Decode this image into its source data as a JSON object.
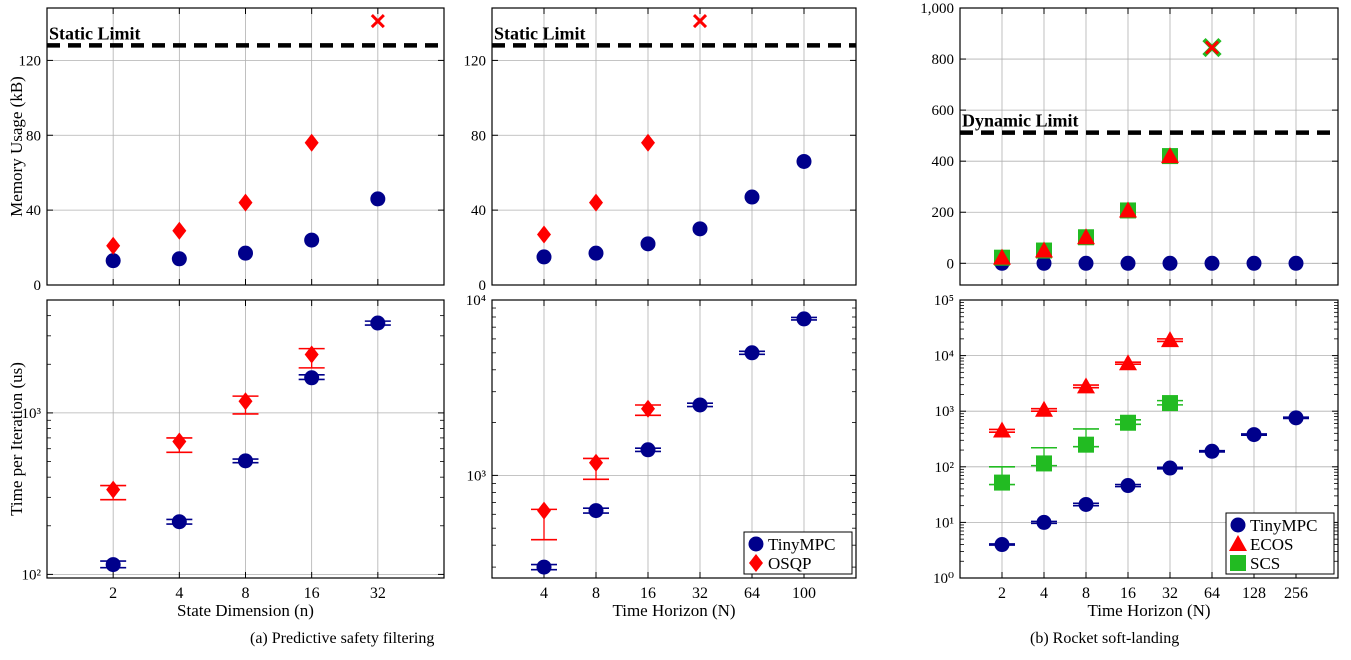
{
  "colors": {
    "tinympc": "#00008b",
    "osqp": "#ff0000",
    "ecos": "#ff0000",
    "scs": "#22bb22",
    "limit": "#000000",
    "grid": "#b0b0b0"
  },
  "captions": {
    "a": "(a) Predictive safety filtering",
    "b": "(b) Rocket soft-landing"
  },
  "chart_data": [
    {
      "id": "a-mem-n",
      "type": "scatter",
      "xlabel": "",
      "ylabel": "Memory Usage (kB)",
      "ylim": [
        0,
        148
      ],
      "yticks": [
        0,
        40,
        80,
        120
      ],
      "ytick_labels": [
        "0",
        "40",
        "80",
        "120"
      ],
      "categories": [
        "2",
        "4",
        "8",
        "16",
        "32"
      ],
      "show_x_ticklabels": false,
      "hline": {
        "value": 128,
        "label": "Static Limit"
      },
      "grid": true,
      "series": [
        {
          "name": "TinyMPC",
          "marker": "circle",
          "color": "#00008b",
          "values": [
            13,
            14,
            17,
            24,
            46
          ]
        },
        {
          "name": "OSQP",
          "marker": "diamond",
          "color": "#ff0000",
          "values": [
            21,
            29,
            44,
            76,
            null
          ]
        }
      ],
      "failures": [
        {
          "x": "32",
          "y": 141,
          "color": "#ff0000"
        }
      ]
    },
    {
      "id": "a-mem-N",
      "type": "scatter",
      "xlabel": "",
      "ylabel": "",
      "ylim": [
        0,
        148
      ],
      "yticks": [
        0,
        40,
        80,
        120
      ],
      "ytick_labels": [
        "0",
        "40",
        "80",
        "120"
      ],
      "categories": [
        "4",
        "8",
        "16",
        "32",
        "64",
        "100"
      ],
      "show_x_ticklabels": false,
      "hline": {
        "value": 128,
        "label": "Static Limit"
      },
      "grid": true,
      "series": [
        {
          "name": "TinyMPC",
          "marker": "circle",
          "color": "#00008b",
          "values": [
            15,
            17,
            22,
            30,
            47,
            66
          ]
        },
        {
          "name": "OSQP",
          "marker": "diamond",
          "color": "#ff0000",
          "values": [
            27,
            44,
            76,
            null,
            null,
            null
          ]
        }
      ],
      "failures": [
        {
          "x": "32",
          "y": 141,
          "color": "#ff0000"
        }
      ]
    },
    {
      "id": "b-mem",
      "type": "scatter",
      "xlabel": "",
      "ylabel": "",
      "ylim": [
        -85,
        1000
      ],
      "yticks": [
        0,
        200,
        400,
        600,
        800,
        1000
      ],
      "ytick_labels": [
        "0",
        "200",
        "400",
        "600",
        "800",
        "1,000"
      ],
      "categories": [
        "2",
        "4",
        "8",
        "16",
        "32",
        "64",
        "128",
        "256"
      ],
      "show_x_ticklabels": false,
      "hline": {
        "value": 512,
        "label": "Dynamic Limit"
      },
      "grid": true,
      "series": [
        {
          "name": "TinyMPC",
          "marker": "circle",
          "color": "#00008b",
          "values": [
            0,
            0,
            0,
            0,
            0,
            0,
            0,
            0
          ]
        },
        {
          "name": "SCS",
          "marker": "square",
          "color": "#22bb22",
          "values": [
            22,
            50,
            102,
            207,
            420,
            null,
            null,
            null
          ]
        },
        {
          "name": "ECOS",
          "marker": "triangle",
          "color": "#ff0000",
          "values": [
            22,
            50,
            102,
            207,
            420,
            null,
            null,
            null
          ]
        }
      ],
      "failures": [
        {
          "x": "64",
          "y": 845,
          "color": "#22bb22"
        },
        {
          "x": "64",
          "y": 845,
          "color": "#ff0000"
        }
      ]
    },
    {
      "id": "a-time-n",
      "type": "scatter",
      "scale": "log",
      "xlabel": "State Dimension (n)",
      "ylabel": "Time per Iteration (us)",
      "ylim": [
        95,
        5000
      ],
      "yticks": [
        100,
        1000
      ],
      "ytick_labels": [
        "10²",
        "10³"
      ],
      "categories": [
        "2",
        "4",
        "8",
        "16",
        "32"
      ],
      "show_x_ticklabels": true,
      "grid": true,
      "series": [
        {
          "name": "TinyMPC",
          "marker": "circle",
          "color": "#00008b",
          "values": [
            115,
            212,
            505,
            1650,
            3600
          ],
          "err_low": [
            110,
            205,
            492,
            1610,
            3500
          ],
          "err_high": [
            121,
            219,
            518,
            1720,
            3700
          ]
        },
        {
          "name": "OSQP",
          "marker": "diamond",
          "color": "#ff0000",
          "values": [
            335,
            665,
            1180,
            2300,
            null
          ],
          "err_low": [
            290,
            570,
            985,
            1900,
            null
          ],
          "err_high": [
            355,
            700,
            1270,
            2500,
            null
          ]
        }
      ],
      "legend": null
    },
    {
      "id": "a-time-N",
      "type": "scatter",
      "scale": "log",
      "xlabel": "Time Horizon (N)",
      "ylabel": "",
      "ylim": [
        260,
        10000
      ],
      "yticks": [
        1000,
        10000
      ],
      "ytick_labels": [
        "10³",
        "10⁴"
      ],
      "categories": [
        "4",
        "8",
        "16",
        "32",
        "64",
        "100"
      ],
      "show_x_ticklabels": true,
      "grid": true,
      "series": [
        {
          "name": "TinyMPC",
          "marker": "circle",
          "color": "#00008b",
          "values": [
            300,
            630,
            1400,
            2520,
            5000,
            7800
          ],
          "err_low": [
            290,
            610,
            1370,
            2470,
            4900,
            7700
          ],
          "err_high": [
            310,
            650,
            1430,
            2580,
            5100,
            7950
          ]
        },
        {
          "name": "OSQP",
          "marker": "diamond",
          "color": "#ff0000",
          "values": [
            630,
            1180,
            2400,
            null,
            null,
            null
          ],
          "err_low": [
            430,
            950,
            2200,
            null,
            null,
            null
          ],
          "err_high": [
            640,
            1250,
            2520,
            null,
            null,
            null
          ]
        }
      ],
      "legend": {
        "placement": "bottom-right",
        "entries": [
          {
            "name": "TinyMPC",
            "marker": "circle",
            "color": "#00008b"
          },
          {
            "name": "OSQP",
            "marker": "diamond",
            "color": "#ff0000"
          }
        ]
      }
    },
    {
      "id": "b-time",
      "type": "scatter",
      "scale": "log",
      "xlabel": "Time Horizon (N)",
      "ylabel": "",
      "ylim": [
        1,
        100000
      ],
      "yticks": [
        1,
        10,
        100,
        1000,
        10000,
        100000
      ],
      "ytick_labels": [
        "10⁰",
        "10¹",
        "10²",
        "10³",
        "10⁴",
        "10⁵"
      ],
      "categories": [
        "2",
        "4",
        "8",
        "16",
        "32",
        "64",
        "128",
        "256"
      ],
      "show_x_ticklabels": true,
      "grid": true,
      "series": [
        {
          "name": "TinyMPC",
          "marker": "circle",
          "color": "#00008b",
          "values": [
            4,
            10,
            21,
            46,
            95,
            190,
            380,
            760
          ],
          "err_low": [
            3.9,
            9.6,
            20,
            44,
            92,
            185,
            370,
            740
          ],
          "err_high": [
            4.1,
            10.4,
            22,
            48,
            98,
            195,
            390,
            780
          ]
        },
        {
          "name": "ECOS",
          "marker": "triangle",
          "color": "#ff0000",
          "values": [
            450,
            1060,
            2800,
            7300,
            19000,
            null,
            null,
            null
          ],
          "err_low": [
            420,
            1000,
            2650,
            7000,
            18000,
            null,
            null,
            null
          ],
          "err_high": [
            470,
            1110,
            2950,
            7600,
            20000,
            null,
            null,
            null
          ]
        },
        {
          "name": "SCS",
          "marker": "square",
          "color": "#22bb22",
          "values": [
            52,
            115,
            250,
            620,
            1400,
            null,
            null,
            null
          ],
          "err_low": [
            48,
            105,
            230,
            580,
            1300,
            null,
            null,
            null
          ],
          "err_high": [
            100,
            220,
            480,
            700,
            1550,
            null,
            null,
            null
          ]
        }
      ],
      "legend": {
        "placement": "bottom-right",
        "entries": [
          {
            "name": "TinyMPC",
            "marker": "circle",
            "color": "#00008b"
          },
          {
            "name": "ECOS",
            "marker": "triangle",
            "color": "#ff0000"
          },
          {
            "name": "SCS",
            "marker": "square",
            "color": "#22bb22"
          }
        ]
      }
    }
  ]
}
